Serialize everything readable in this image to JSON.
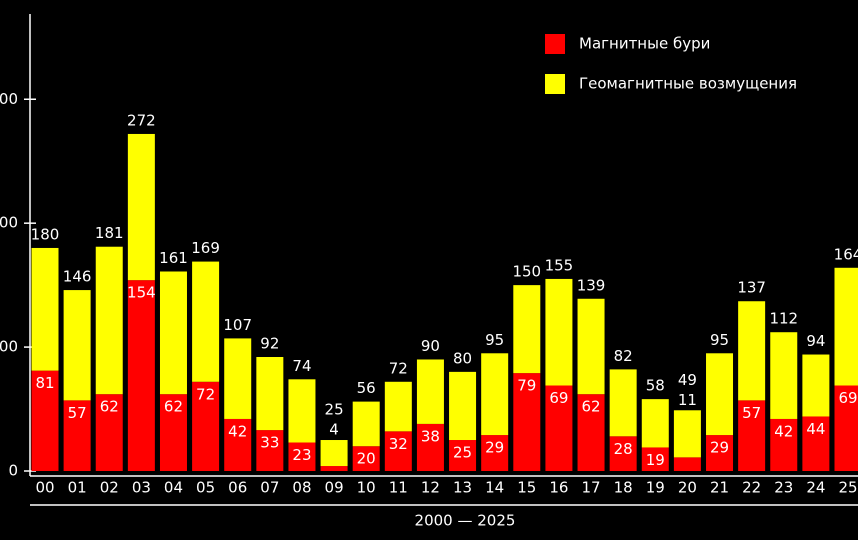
{
  "chart_data": {
    "type": "stacked-bar",
    "x_label": "2000 — 2025",
    "categories": [
      "00",
      "01",
      "02",
      "03",
      "04",
      "05",
      "06",
      "07",
      "08",
      "09",
      "10",
      "11",
      "12",
      "13",
      "14",
      "15",
      "16",
      "17",
      "18",
      "19",
      "20",
      "21",
      "22",
      "23",
      "24",
      "25"
    ],
    "series": [
      {
        "name": "Магнитные бури",
        "color": "#ff0000",
        "values": [
          81,
          57,
          62,
          154,
          62,
          72,
          42,
          33,
          23,
          4,
          20,
          32,
          38,
          25,
          29,
          79,
          69,
          62,
          28,
          19,
          11,
          29,
          57,
          42,
          44,
          69
        ]
      },
      {
        "name": "Геомагнитные возмущения",
        "color": "#ffff00",
        "values": [
          99,
          89,
          119,
          118,
          99,
          97,
          65,
          59,
          51,
          21,
          36,
          40,
          52,
          55,
          66,
          71,
          86,
          77,
          54,
          39,
          38,
          66,
          80,
          70,
          50,
          95
        ]
      }
    ],
    "totals": [
      180,
      146,
      181,
      272,
      161,
      169,
      107,
      92,
      74,
      25,
      56,
      72,
      90,
      80,
      95,
      150,
      155,
      139,
      82,
      58,
      49,
      95,
      137,
      112,
      94,
      164
    ],
    "ylim": [
      0,
      368
    ],
    "yticks": [
      0,
      {
        "value": 100,
        "label": "00"
      },
      {
        "value": 200,
        "label": "00"
      },
      {
        "value": 300,
        "label": "00"
      }
    ],
    "legend": "top-right"
  }
}
